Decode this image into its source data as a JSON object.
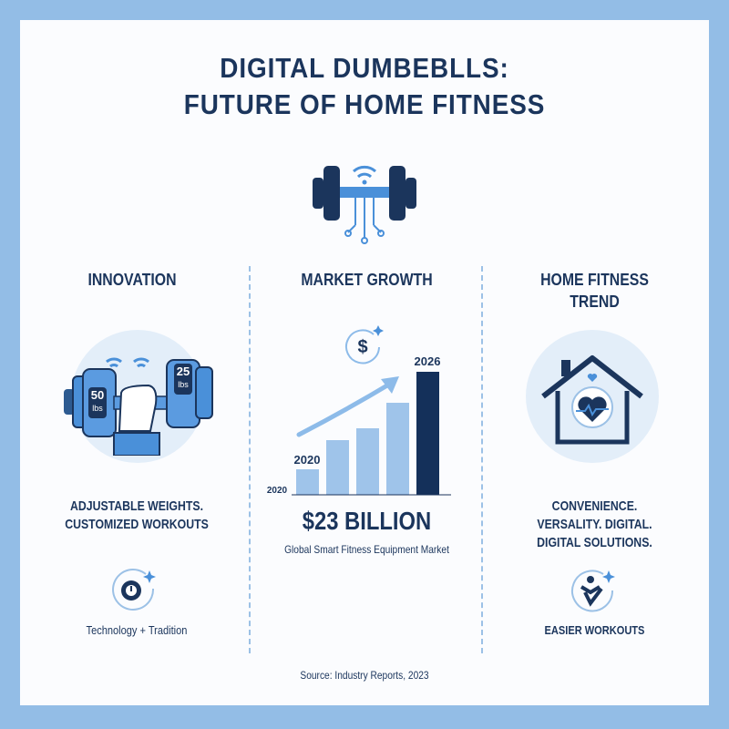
{
  "title_line1": "DIGITAL DUMBEBLLS:",
  "title_line2": "FUTURE OF HOME FITNESS",
  "columns": {
    "innovation": {
      "heading": "INNOVATION",
      "weight_left": "50",
      "weight_left_unit": "lbs",
      "weight_right": "25",
      "weight_right_unit": "lbs",
      "text_line1": "ADJUSTABLE WEIGHTS.",
      "text_line2": "CUSTOMIZED WORKOUTS",
      "footer": "Technology + Tradition",
      "icon": "gear-power-icon"
    },
    "market": {
      "heading": "MARKET GROWTH",
      "icon": "dollar-icon",
      "value": "$23 BILLION",
      "caption": "Global Smart Fitness Equipment Market"
    },
    "home": {
      "heading_line1": "HOME FITNESS",
      "heading_line2": "TREND",
      "icon": "house-heart-icon",
      "text_line1": "CONVENIENCE.",
      "text_line2": "VERSALITY. DIGITAL.",
      "text_line3": "DIGITAL SOLUTIONS.",
      "footer": "EASIER WORKOUTS",
      "footer_icon": "person-check-icon"
    }
  },
  "chart_data": {
    "type": "bar",
    "labels_shown": [
      "2020",
      "2020",
      "2026"
    ],
    "values_relative": [
      28,
      60,
      73,
      101,
      135
    ],
    "highlight_last": true,
    "colors": {
      "bars": "#9fc4ea",
      "last": "#14305a",
      "arrow": "#8dbbe9"
    }
  },
  "source": "Source: Industry Reports, 2023",
  "colors": {
    "frame": "#93bde6",
    "navy": "#1b355c",
    "accent": "#4a90d9"
  }
}
